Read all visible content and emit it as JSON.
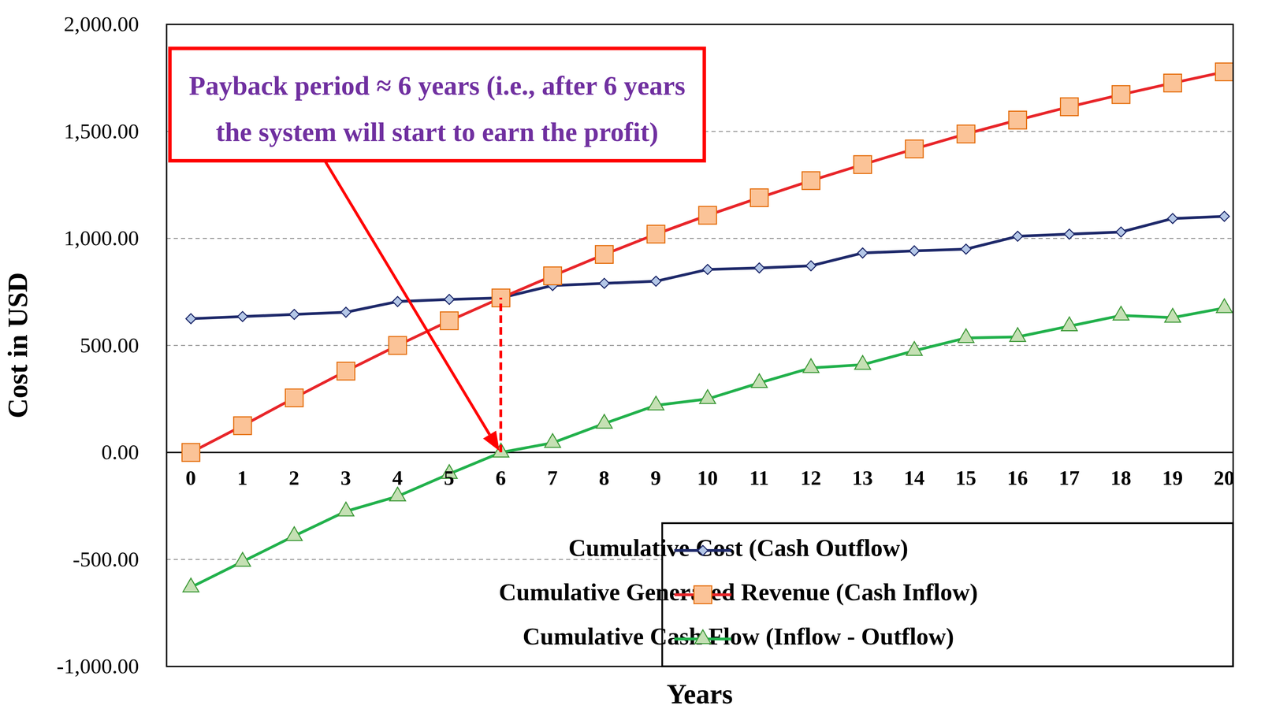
{
  "chart_data": {
    "type": "line",
    "xlabel": "Years",
    "ylabel": "Cost in USD",
    "x": [
      0,
      1,
      2,
      3,
      4,
      5,
      6,
      7,
      8,
      9,
      10,
      11,
      12,
      13,
      14,
      15,
      16,
      17,
      18,
      19,
      20
    ],
    "xlim": [
      -0.47,
      20.17
    ],
    "xticks": [
      0,
      1,
      2,
      3,
      4,
      5,
      6,
      7,
      8,
      9,
      10,
      11,
      12,
      13,
      14,
      15,
      16,
      17,
      18,
      19,
      20
    ],
    "ylim": [
      -1000,
      2000
    ],
    "yticks": [
      {
        "value": -1000,
        "label": "-1,000.00"
      },
      {
        "value": -500,
        "label": "-500.00"
      },
      {
        "value": 0,
        "label": "0.00"
      },
      {
        "value": 500,
        "label": "500.00"
      },
      {
        "value": 1000,
        "label": "1,000.00"
      },
      {
        "value": 1500,
        "label": "1,500.00"
      },
      {
        "value": 2000,
        "label": "2,000.00"
      }
    ],
    "grid": true,
    "legend": "lower right",
    "series": [
      {
        "name": "Cumulative Cost (Cash Outflow)",
        "color": "#1f2a6b",
        "marker": "diamond",
        "values": [
          625,
          635,
          645,
          655,
          705,
          715,
          722,
          780,
          790,
          800,
          855,
          862,
          872,
          932,
          942,
          950,
          1010,
          1020,
          1030,
          1093,
          1103
        ]
      },
      {
        "name": "Cumulative Generated Revenue (Cash Inflow)",
        "color": "#e8262a",
        "marker": "square",
        "values": [
          0,
          125,
          255,
          380,
          500,
          615,
          722,
          825,
          925,
          1020,
          1108,
          1190,
          1270,
          1345,
          1418,
          1488,
          1553,
          1615,
          1672,
          1726,
          1778
        ]
      },
      {
        "name": "Cumulative Cash Flow (Inflow - Outflow)",
        "color": "#22b14c",
        "marker": "triangle",
        "values": [
          -630,
          -510,
          -390,
          -275,
          -205,
          -100,
          0,
          45,
          135,
          220,
          250,
          325,
          395,
          410,
          475,
          535,
          540,
          590,
          640,
          630,
          675
        ]
      }
    ],
    "annotation": {
      "text": [
        "Payback period ≈ 6 years (i.e., after 6 years",
        "the system will start to earn the profit)"
      ],
      "x": 6
    }
  }
}
